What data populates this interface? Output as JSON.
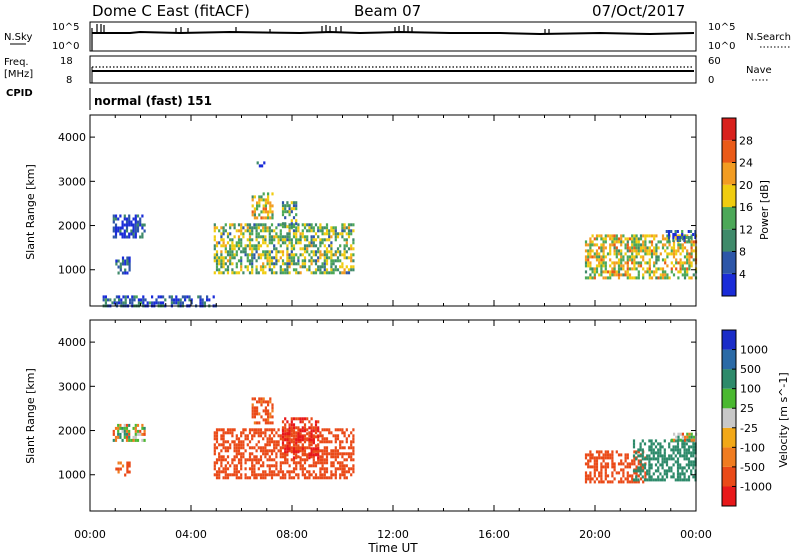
{
  "header": {
    "station": "Dome C East (fitACF)",
    "beam": "Beam 07",
    "date": "07/Oct/2017"
  },
  "panels": {
    "nsky": {
      "label": "N.Sky",
      "tick_top": "10^5",
      "tick_bottom": "10^0"
    },
    "nsearch": {
      "label": "N.Search",
      "tick_top": "10^5",
      "tick_bottom": "10^0"
    },
    "freq": {
      "label_top": "Freq.",
      "label_bottom": "[MHz]",
      "tick_top": "18",
      "tick_bottom": "8"
    },
    "nave": {
      "label": "Nave",
      "tick_top": "60",
      "tick_bottom": "0"
    },
    "cpid": {
      "label": "CPID",
      "value": "normal (fast) 151"
    }
  },
  "colors": {
    "power": [
      "#1a2cd8",
      "#2d56a8",
      "#3f8a6a",
      "#4ca858",
      "#f0cc10",
      "#f29c22",
      "#ea5a18",
      "#d8201c"
    ],
    "velocity": [
      "#e8181a",
      "#ea4a18",
      "#f07c20",
      "#f2a818",
      "#c8c8c8",
      "#4ab830",
      "#2d8a6a",
      "#2a6aa6",
      "#1a2cc8"
    ]
  },
  "chart_data": [
    {
      "type": "heatmap",
      "title": "",
      "xlabel": "",
      "ylabel": "Slant Range [km]",
      "xlim": [
        0,
        24
      ],
      "ylim": [
        180,
        4500
      ],
      "x_tick_labels": [
        "00:00",
        "04:00",
        "08:00",
        "12:00",
        "16:00",
        "20:00",
        "00:00"
      ],
      "y_ticks": [
        1000,
        2000,
        3000,
        4000
      ],
      "colorbar": {
        "label": "Power [dB]",
        "range": [
          0,
          32
        ],
        "tick_values": [
          4,
          8,
          12,
          16,
          20,
          24,
          28
        ]
      },
      "regions": [
        {
          "x": [
            4.9,
            10.4
          ],
          "y": [
            950,
            2050
          ],
          "value": 14
        },
        {
          "x": [
            6.4,
            7.2
          ],
          "y": [
            2150,
            2750
          ],
          "value": 18
        },
        {
          "x": [
            7.6,
            8.2
          ],
          "y": [
            2000,
            2550
          ],
          "value": 12
        },
        {
          "x": [
            0.9,
            2.2
          ],
          "y": [
            1750,
            2250
          ],
          "value": 4
        },
        {
          "x": [
            1.0,
            1.6
          ],
          "y": [
            950,
            1300
          ],
          "value": 4
        },
        {
          "x": [
            6.6,
            6.9
          ],
          "y": [
            3350,
            3450
          ],
          "value": 4
        },
        {
          "x": [
            19.6,
            24
          ],
          "y": [
            850,
            1800
          ],
          "value": 18
        },
        {
          "x": [
            22.8,
            24
          ],
          "y": [
            1650,
            1900
          ],
          "value": 6
        },
        {
          "x": [
            0.5,
            5.0
          ],
          "y": [
            180,
            420
          ],
          "value": 6
        }
      ]
    },
    {
      "type": "heatmap",
      "title": "",
      "xlabel": "Time UT",
      "ylabel": "Slant Range [km]",
      "xlim": [
        0,
        24
      ],
      "ylim": [
        180,
        4500
      ],
      "x_tick_labels": [
        "00:00",
        "04:00",
        "08:00",
        "12:00",
        "16:00",
        "20:00",
        "00:00"
      ],
      "y_ticks": [
        1000,
        2000,
        3000,
        4000
      ],
      "colorbar": {
        "label": "Velocity [m s^-1]",
        "tick_labels": [
          "1000",
          "500",
          "100",
          "25",
          "-25",
          "-100",
          "-500",
          "-1000"
        ]
      },
      "regions": [
        {
          "x": [
            4.9,
            10.4
          ],
          "y": [
            950,
            2050
          ],
          "value": -300
        },
        {
          "x": [
            6.4,
            7.2
          ],
          "y": [
            2150,
            2750
          ],
          "value": -200
        },
        {
          "x": [
            7.6,
            9.0
          ],
          "y": [
            1400,
            2300
          ],
          "value": -600
        },
        {
          "x": [
            0.9,
            2.2
          ],
          "y": [
            1800,
            2150
          ],
          "value": 10
        },
        {
          "x": [
            1.0,
            1.6
          ],
          "y": [
            1000,
            1300
          ],
          "value": -150
        },
        {
          "x": [
            19.6,
            22.0
          ],
          "y": [
            850,
            1550
          ],
          "value": -250
        },
        {
          "x": [
            21.5,
            24
          ],
          "y": [
            900,
            1800
          ],
          "value": 300
        },
        {
          "x": [
            23.0,
            24
          ],
          "y": [
            1750,
            1950
          ],
          "value": 10
        }
      ]
    }
  ]
}
